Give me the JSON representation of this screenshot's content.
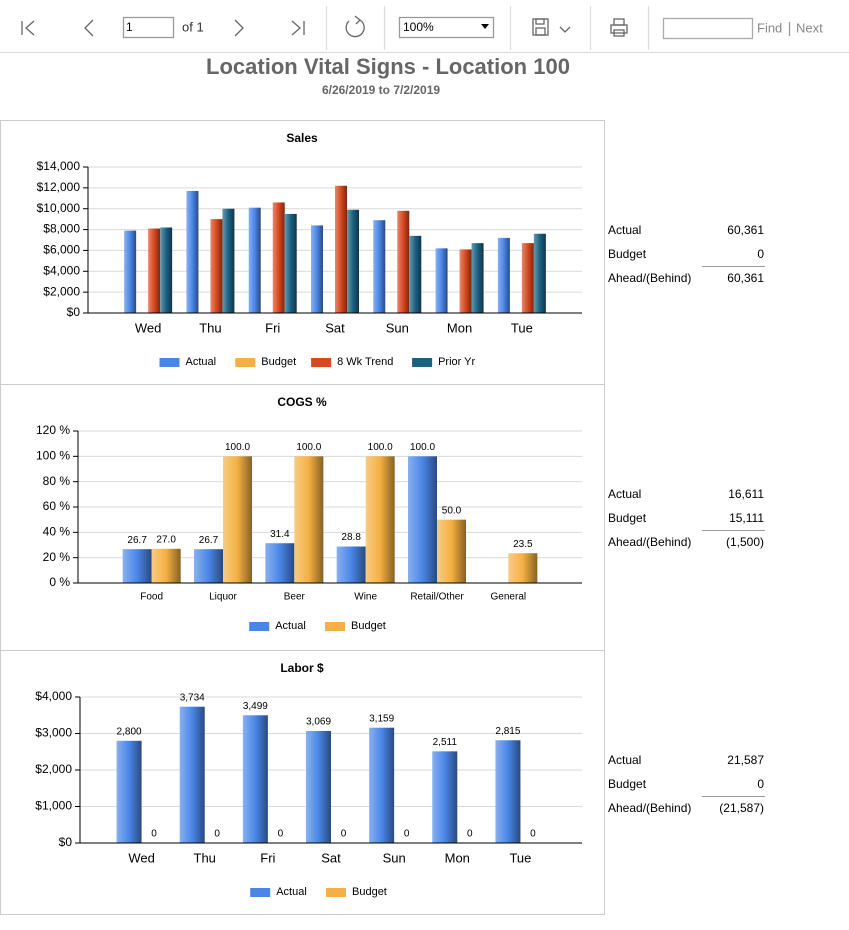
{
  "toolbar": {
    "page": "1",
    "of": "of 1",
    "zoom": "100%",
    "find": "Find",
    "next": "Next"
  },
  "report": {
    "title": "Location Vital Signs - Location 100",
    "subtitle": "6/26/2019 to 7/2/2019"
  },
  "chart_data": [
    {
      "type": "bar",
      "title": "Sales",
      "grid": true,
      "legend": "bottom",
      "categories": [
        "Wed",
        "Thu",
        "Fri",
        "Sat",
        "Sun",
        "Mon",
        "Tue"
      ],
      "series": [
        {
          "name": "Actual",
          "color": "#4a86e8",
          "values": [
            7900,
            11700,
            10100,
            8400,
            8900,
            6200,
            7200
          ]
        },
        {
          "name": "Budget",
          "color": "#f4b042",
          "values": [
            0,
            0,
            0,
            0,
            0,
            0,
            0
          ]
        },
        {
          "name": "8 Wk Trend",
          "color": "#d9481f",
          "values": [
            8100,
            9000,
            10600,
            12200,
            9800,
            6100,
            6700
          ]
        },
        {
          "name": "Prior Yr",
          "color": "#1b6182",
          "values": [
            8200,
            10000,
            9500,
            9900,
            7400,
            6700,
            7600
          ]
        }
      ],
      "ylim": [
        0,
        14000
      ],
      "yticks": [
        {
          "value": 0,
          "label": "$0"
        },
        {
          "value": 2000,
          "label": "$2,000"
        },
        {
          "value": 4000,
          "label": "$4,000"
        },
        {
          "value": 6000,
          "label": "$6,000"
        },
        {
          "value": 8000,
          "label": "$8,000"
        },
        {
          "value": 10000,
          "label": "$10,000"
        },
        {
          "value": 12000,
          "label": "$12,000"
        },
        {
          "value": 14000,
          "label": "$14,000"
        }
      ]
    },
    {
      "type": "bar",
      "title": "COGS %",
      "grid": true,
      "legend": "bottom",
      "data_labels": true,
      "categories": [
        "Food",
        "Liquor",
        "Beer",
        "Wine",
        "Retail/Other",
        "General"
      ],
      "series": [
        {
          "name": "Actual",
          "color": "#4a86e8",
          "values": [
            26.7,
            26.7,
            31.4,
            28.8,
            100.0,
            null
          ],
          "value_labels": [
            "26.7",
            "26.7",
            "31.4",
            "28.8",
            "100.0",
            null
          ]
        },
        {
          "name": "Budget",
          "color": "#f4b042",
          "values": [
            27.0,
            100.0,
            100.0,
            100.0,
            50.0,
            23.5
          ],
          "value_labels": [
            "27.0",
            "100.0",
            "100.0",
            "100.0",
            "50.0",
            "23.5"
          ]
        }
      ],
      "ylim": [
        0,
        120
      ],
      "yticks": [
        {
          "value": 0,
          "label": "0 %"
        },
        {
          "value": 20,
          "label": "20 %"
        },
        {
          "value": 40,
          "label": "40 %"
        },
        {
          "value": 60,
          "label": "60 %"
        },
        {
          "value": 80,
          "label": "80 %"
        },
        {
          "value": 100,
          "label": "100 %"
        },
        {
          "value": 120,
          "label": "120 %"
        }
      ]
    },
    {
      "type": "bar",
      "title": "Labor $",
      "grid": true,
      "legend": "bottom",
      "data_labels": true,
      "categories": [
        "Wed",
        "Thu",
        "Fri",
        "Sat",
        "Sun",
        "Mon",
        "Tue"
      ],
      "series": [
        {
          "name": "Actual",
          "color": "#4a86e8",
          "values": [
            2800,
            3734,
            3499,
            3069,
            3159,
            2511,
            2815
          ],
          "value_labels": [
            "2,800",
            "3,734",
            "3,499",
            "3,069",
            "3,159",
            "2,511",
            "2,815"
          ]
        },
        {
          "name": "Budget",
          "color": "#f4b042",
          "values": [
            0,
            0,
            0,
            0,
            0,
            0,
            0
          ]
        }
      ],
      "ylim": [
        0,
        4000
      ],
      "yticks": [
        {
          "value": 0,
          "label": "$0"
        },
        {
          "value": 1000,
          "label": "$1,000"
        },
        {
          "value": 2000,
          "label": "$2,000"
        },
        {
          "value": 3000,
          "label": "$3,000"
        },
        {
          "value": 4000,
          "label": "$4,000"
        }
      ]
    }
  ],
  "summaries": [
    {
      "rows": [
        [
          "Actual",
          "60,361"
        ],
        [
          "Budget",
          "0"
        ],
        [
          "Ahead/(Behind)",
          "60,361"
        ]
      ]
    },
    {
      "rows": [
        [
          "Actual",
          "16,611"
        ],
        [
          "Budget",
          "15,111"
        ],
        [
          "Ahead/(Behind)",
          "(1,500)"
        ]
      ]
    },
    {
      "rows": [
        [
          "Actual",
          "21,587"
        ],
        [
          "Budget",
          "0"
        ],
        [
          "Ahead/(Behind)",
          "(21,587)"
        ]
      ]
    }
  ]
}
